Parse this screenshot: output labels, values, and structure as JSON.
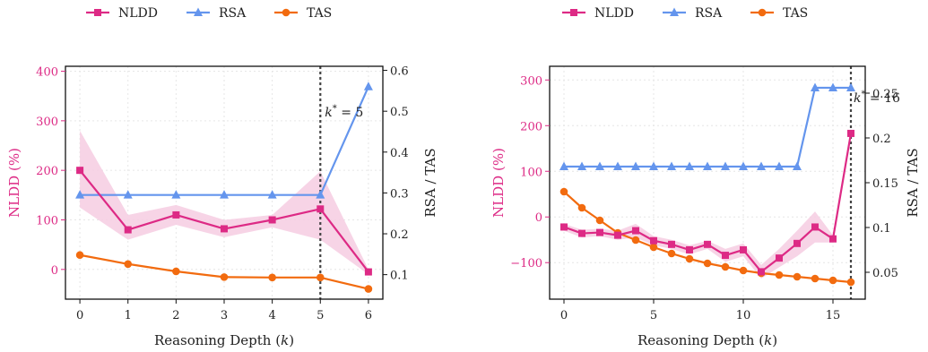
{
  "colors": {
    "nldd": "#dd2a85",
    "rsa": "#6495ed",
    "tas": "#f26b0f",
    "band": "#f6cde2",
    "grid": "#e6e6e6",
    "kstar_line": "#444444"
  },
  "chart_data": [
    {
      "type": "line",
      "legend": {
        "position": "top",
        "entries": [
          "NLDD",
          "RSA",
          "TAS"
        ]
      },
      "xlabel": "Reasoning Depth (k)",
      "ylabel_left": "NLDD (%)",
      "ylabel_right": "RSA / TAS",
      "x": [
        0,
        1,
        2,
        3,
        4,
        5,
        6
      ],
      "xlim": [
        -0.3,
        6.3
      ],
      "xticks": [
        0,
        1,
        2,
        3,
        4,
        5,
        6
      ],
      "ylim_left": [
        -60,
        410
      ],
      "yticks_left": [
        0,
        100,
        200,
        300,
        400
      ],
      "ylim_right": [
        0.04,
        0.61
      ],
      "yticks_right": [
        0.1,
        0.2,
        0.3,
        0.4,
        0.5,
        0.6
      ],
      "grid": true,
      "series": [
        {
          "name": "NLDD",
          "axis": "left",
          "marker": "square",
          "values": [
            200,
            80,
            110,
            82,
            100,
            122,
            -5
          ],
          "band_upper": [
            280,
            110,
            130,
            100,
            110,
            198,
            0
          ],
          "band_lower": [
            125,
            60,
            90,
            65,
            85,
            60,
            -10
          ]
        },
        {
          "name": "RSA",
          "axis": "right",
          "marker": "triangle",
          "values": [
            0.295,
            0.295,
            0.295,
            0.295,
            0.295,
            0.295,
            0.56
          ]
        },
        {
          "name": "TAS",
          "axis": "right",
          "marker": "circle",
          "values": [
            0.148,
            0.126,
            0.108,
            0.094,
            0.093,
            0.093,
            0.065
          ]
        }
      ],
      "annotation": {
        "x": 5,
        "label": "k* = 5"
      }
    },
    {
      "type": "line",
      "legend": {
        "position": "top",
        "entries": [
          "NLDD",
          "RSA",
          "TAS"
        ]
      },
      "xlabel": "Reasoning Depth (k)",
      "ylabel_left": "NLDD (%)",
      "ylabel_right": "RSA / TAS",
      "x": [
        0,
        1,
        2,
        3,
        4,
        5,
        6,
        7,
        8,
        9,
        10,
        11,
        12,
        13,
        14,
        15,
        16
      ],
      "xlim": [
        -0.8,
        16.8
      ],
      "xticks": [
        0,
        5,
        10,
        15
      ],
      "ylim_left": [
        -180,
        330
      ],
      "yticks_left": [
        -100,
        0,
        100,
        200,
        300
      ],
      "ylim_right": [
        0.02,
        0.28
      ],
      "yticks_right": [
        0.05,
        0.1,
        0.15,
        0.2,
        0.25
      ],
      "grid": true,
      "series": [
        {
          "name": "NLDD",
          "axis": "left",
          "marker": "square",
          "values": [
            -22,
            -36,
            -34,
            -40,
            -30,
            -52,
            -60,
            -72,
            -60,
            -84,
            -72,
            -120,
            -90,
            -58,
            -22,
            -48,
            183
          ],
          "band_upper": [
            -15,
            -28,
            -26,
            -30,
            -15,
            -42,
            -50,
            -62,
            -52,
            -70,
            -58,
            -105,
            -70,
            -30,
            12,
            -40,
            183
          ],
          "band_lower": [
            -30,
            -45,
            -42,
            -50,
            -45,
            -62,
            -70,
            -82,
            -70,
            -98,
            -86,
            -135,
            -110,
            -86,
            -56,
            -56,
            183
          ]
        },
        {
          "name": "RSA",
          "axis": "right",
          "marker": "triangle",
          "values": [
            0.168,
            0.168,
            0.168,
            0.168,
            0.168,
            0.168,
            0.168,
            0.168,
            0.168,
            0.168,
            0.168,
            0.168,
            0.168,
            0.168,
            0.256,
            0.256,
            0.256
          ]
        },
        {
          "name": "TAS",
          "axis": "right",
          "marker": "circle",
          "values": [
            0.14,
            0.122,
            0.108,
            0.094,
            0.086,
            0.078,
            0.071,
            0.065,
            0.06,
            0.056,
            0.052,
            0.049,
            0.047,
            0.045,
            0.043,
            0.041,
            0.039
          ]
        }
      ],
      "annotation": {
        "x": 16,
        "label": "k* = 16"
      }
    }
  ]
}
